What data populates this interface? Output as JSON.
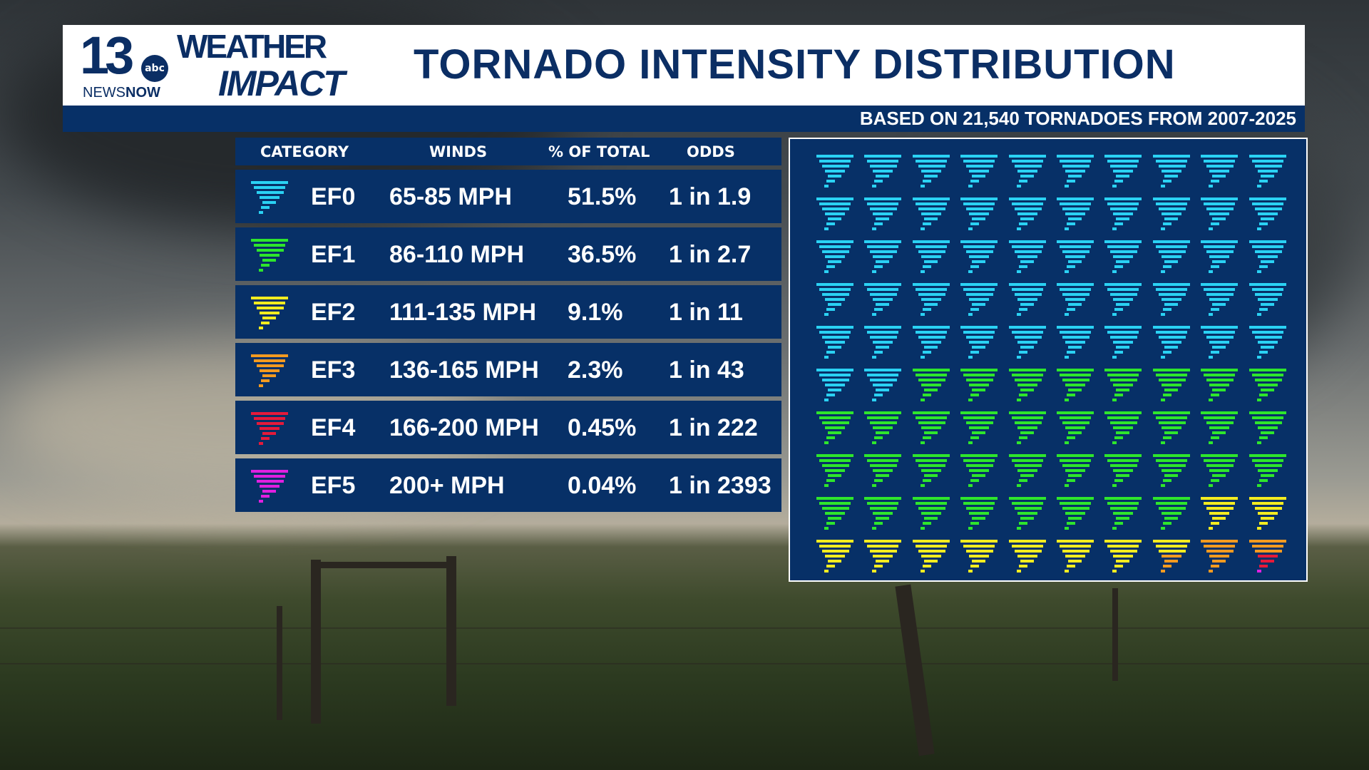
{
  "header": {
    "logo_station": "13",
    "logo_network": "abc",
    "logo_newsnow": [
      "NEWS",
      "NOW"
    ],
    "logo_weather": "WEATHER",
    "logo_impact": "IMPACT",
    "title": "TORNADO INTENSITY DISTRIBUTION",
    "subtitle": "BASED ON 21,540 TORNADOES FROM 2007-2025"
  },
  "colors": {
    "EF0": "#2ad2f4",
    "EF1": "#2ee62c",
    "EF2": "#f4ec20",
    "EF3": "#f39a20",
    "EF4": "#e51a3a",
    "EF5": "#e020e0",
    "panel": "#073067"
  },
  "table": {
    "headers": [
      "CATEGORY",
      "WINDS",
      "% OF TOTAL",
      "ODDS"
    ],
    "rows": [
      {
        "category": "EF0",
        "winds": "65-85 MPH",
        "percent": "51.5%",
        "odds": "1 in 1.9",
        "icon": "tornado-icon"
      },
      {
        "category": "EF1",
        "winds": "86-110 MPH",
        "percent": "36.5%",
        "odds": "1 in 2.7",
        "icon": "tornado-icon"
      },
      {
        "category": "EF2",
        "winds": "111-135 MPH",
        "percent": "9.1%",
        "odds": "1 in 11",
        "icon": "tornado-icon"
      },
      {
        "category": "EF3",
        "winds": "136-165 MPH",
        "percent": "2.3%",
        "odds": "1 in 43",
        "icon": "tornado-icon"
      },
      {
        "category": "EF4",
        "winds": "166-200 MPH",
        "percent": "0.45%",
        "odds": "1 in 222",
        "icon": "tornado-icon"
      },
      {
        "category": "EF5",
        "winds": "200+ MPH",
        "percent": "0.04%",
        "odds": "1 in 2393",
        "icon": "tornado-icon"
      }
    ]
  },
  "chart_data": {
    "type": "waffle",
    "grid": [
      10,
      10
    ],
    "rows": [
      [
        "EF0",
        "EF0",
        "EF0",
        "EF0",
        "EF0",
        "EF0",
        "EF0",
        "EF0",
        "EF0",
        "EF0"
      ],
      [
        "EF0",
        "EF0",
        "EF0",
        "EF0",
        "EF0",
        "EF0",
        "EF0",
        "EF0",
        "EF0",
        "EF0"
      ],
      [
        "EF0",
        "EF0",
        "EF0",
        "EF0",
        "EF0",
        "EF0",
        "EF0",
        "EF0",
        "EF0",
        "EF0"
      ],
      [
        "EF0",
        "EF0",
        "EF0",
        "EF0",
        "EF0",
        "EF0",
        "EF0",
        "EF0",
        "EF0",
        "EF0"
      ],
      [
        "EF0",
        "EF0",
        "EF0",
        "EF0",
        "EF0",
        "EF0",
        "EF0",
        "EF0",
        "EF0",
        "EF0"
      ],
      [
        "EF0",
        "EF0",
        "EF1",
        "EF1",
        "EF1",
        "EF1",
        "EF1",
        "EF1",
        "EF1",
        "EF1"
      ],
      [
        "EF1",
        "EF1",
        "EF1",
        "EF1",
        "EF1",
        "EF1",
        "EF1",
        "EF1",
        "EF1",
        "EF1"
      ],
      [
        "EF1",
        "EF1",
        "EF1",
        "EF1",
        "EF1",
        "EF1",
        "EF1",
        "EF1",
        "EF1",
        "EF1"
      ],
      [
        "EF1",
        "EF1",
        "EF1",
        "EF1",
        "EF1",
        "EF1",
        "EF1",
        "EF1",
        "EF2",
        "EF2"
      ],
      [
        "EF2",
        "EF2",
        "EF2",
        "EF2",
        "EF2",
        "EF2",
        "EF2",
        [
          "EF2",
          "EF2",
          "EF2",
          "EF3",
          "EF3",
          "EF3",
          "EF3"
        ],
        "EF3",
        [
          "EF3",
          "EF3",
          "EF3",
          "EF4",
          "EF4",
          "EF4",
          "EF5"
        ]
      ]
    ]
  }
}
